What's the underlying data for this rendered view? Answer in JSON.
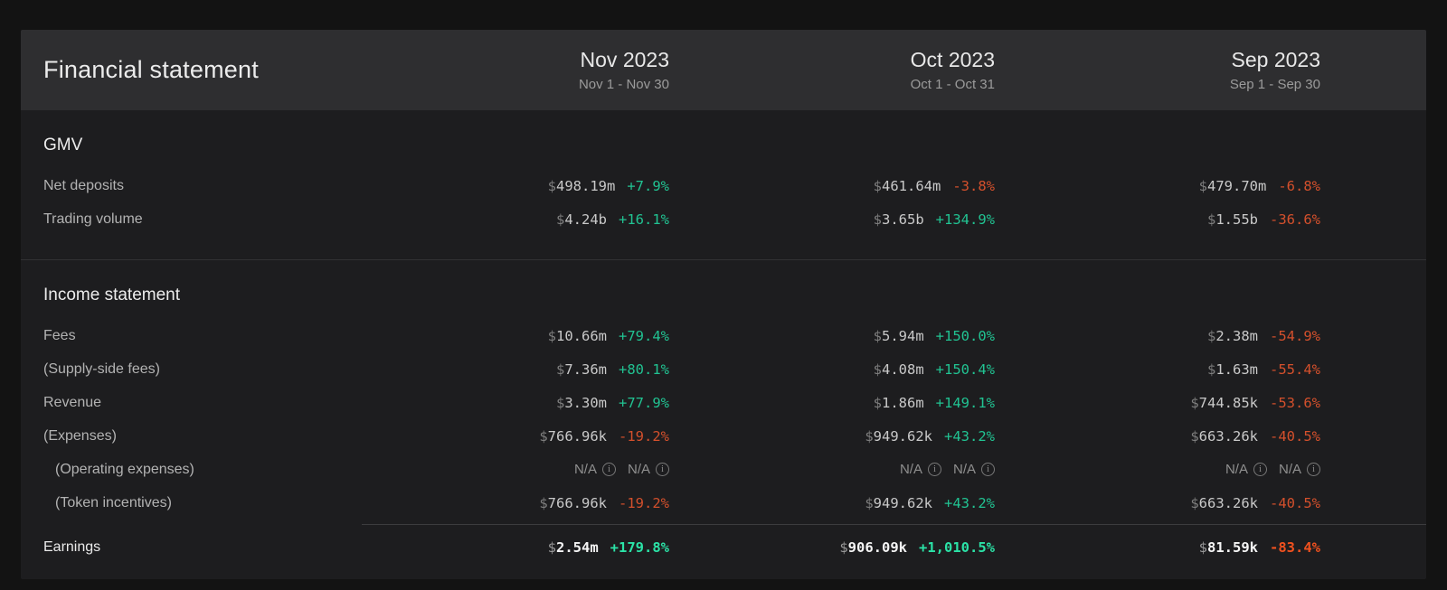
{
  "table": {
    "title": "Financial statement",
    "currency_symbol": "$",
    "na_label": "N/A",
    "columns": [
      {
        "label": "Nov 2023",
        "range": "Nov 1 - Nov 30"
      },
      {
        "label": "Oct 2023",
        "range": "Oct 1 - Oct 31"
      },
      {
        "label": "Sep 2023",
        "range": "Sep 1 - Sep 30"
      }
    ],
    "sections": [
      {
        "name": "GMV",
        "rows": [
          {
            "label": "Net deposits",
            "indent": 0,
            "cells": [
              {
                "amount": "498.19m",
                "change": "+7.9%",
                "dir": "up"
              },
              {
                "amount": "461.64m",
                "change": "-3.8%",
                "dir": "down"
              },
              {
                "amount": "479.70m",
                "change": "-6.8%",
                "dir": "down"
              }
            ]
          },
          {
            "label": "Trading volume",
            "indent": 0,
            "cells": [
              {
                "amount": "4.24b",
                "change": "+16.1%",
                "dir": "up"
              },
              {
                "amount": "3.65b",
                "change": "+134.9%",
                "dir": "up"
              },
              {
                "amount": "1.55b",
                "change": "-36.6%",
                "dir": "down"
              }
            ]
          }
        ]
      },
      {
        "name": "Income statement",
        "rows": [
          {
            "label": "Fees",
            "indent": 0,
            "cells": [
              {
                "amount": "10.66m",
                "change": "+79.4%",
                "dir": "up"
              },
              {
                "amount": "5.94m",
                "change": "+150.0%",
                "dir": "up"
              },
              {
                "amount": "2.38m",
                "change": "-54.9%",
                "dir": "down"
              }
            ]
          },
          {
            "label": "(Supply-side fees)",
            "indent": 0,
            "cells": [
              {
                "amount": "7.36m",
                "change": "+80.1%",
                "dir": "up"
              },
              {
                "amount": "4.08m",
                "change": "+150.4%",
                "dir": "up"
              },
              {
                "amount": "1.63m",
                "change": "-55.4%",
                "dir": "down"
              }
            ]
          },
          {
            "label": "Revenue",
            "indent": 0,
            "cells": [
              {
                "amount": "3.30m",
                "change": "+77.9%",
                "dir": "up"
              },
              {
                "amount": "1.86m",
                "change": "+149.1%",
                "dir": "up"
              },
              {
                "amount": "744.85k",
                "change": "-53.6%",
                "dir": "down"
              }
            ]
          },
          {
            "label": "(Expenses)",
            "indent": 0,
            "cells": [
              {
                "amount": "766.96k",
                "change": "-19.2%",
                "dir": "down"
              },
              {
                "amount": "949.62k",
                "change": "+43.2%",
                "dir": "up"
              },
              {
                "amount": "663.26k",
                "change": "-40.5%",
                "dir": "down"
              }
            ]
          },
          {
            "label": "(Operating expenses)",
            "indent": 1,
            "cells": [
              {
                "na": true
              },
              {
                "na": true
              },
              {
                "na": true
              }
            ]
          },
          {
            "label": "(Token incentives)",
            "indent": 1,
            "cells": [
              {
                "amount": "766.96k",
                "change": "-19.2%",
                "dir": "down"
              },
              {
                "amount": "949.62k",
                "change": "+43.2%",
                "dir": "up"
              },
              {
                "amount": "663.26k",
                "change": "-40.5%",
                "dir": "down"
              }
            ]
          },
          {
            "label": "Earnings",
            "indent": 0,
            "emphasis": true,
            "divider_above": true,
            "cells": [
              {
                "amount": "2.54m",
                "change": "+179.8%",
                "dir": "up"
              },
              {
                "amount": "906.09k",
                "change": "+1,010.5%",
                "dir": "up"
              },
              {
                "amount": "81.59k",
                "change": "-83.4%",
                "dir": "down"
              }
            ]
          }
        ]
      }
    ],
    "icons": {
      "info_glyph": "i"
    },
    "colors": {
      "positive": "#21c392",
      "negative": "#d4502c",
      "positive_bright": "#2be3a7",
      "negative_bright": "#f0511f",
      "page_bg": "#131313",
      "card_bg": "#1d1d1f",
      "header_band": "#2e2e30",
      "divider": "#323234"
    }
  }
}
